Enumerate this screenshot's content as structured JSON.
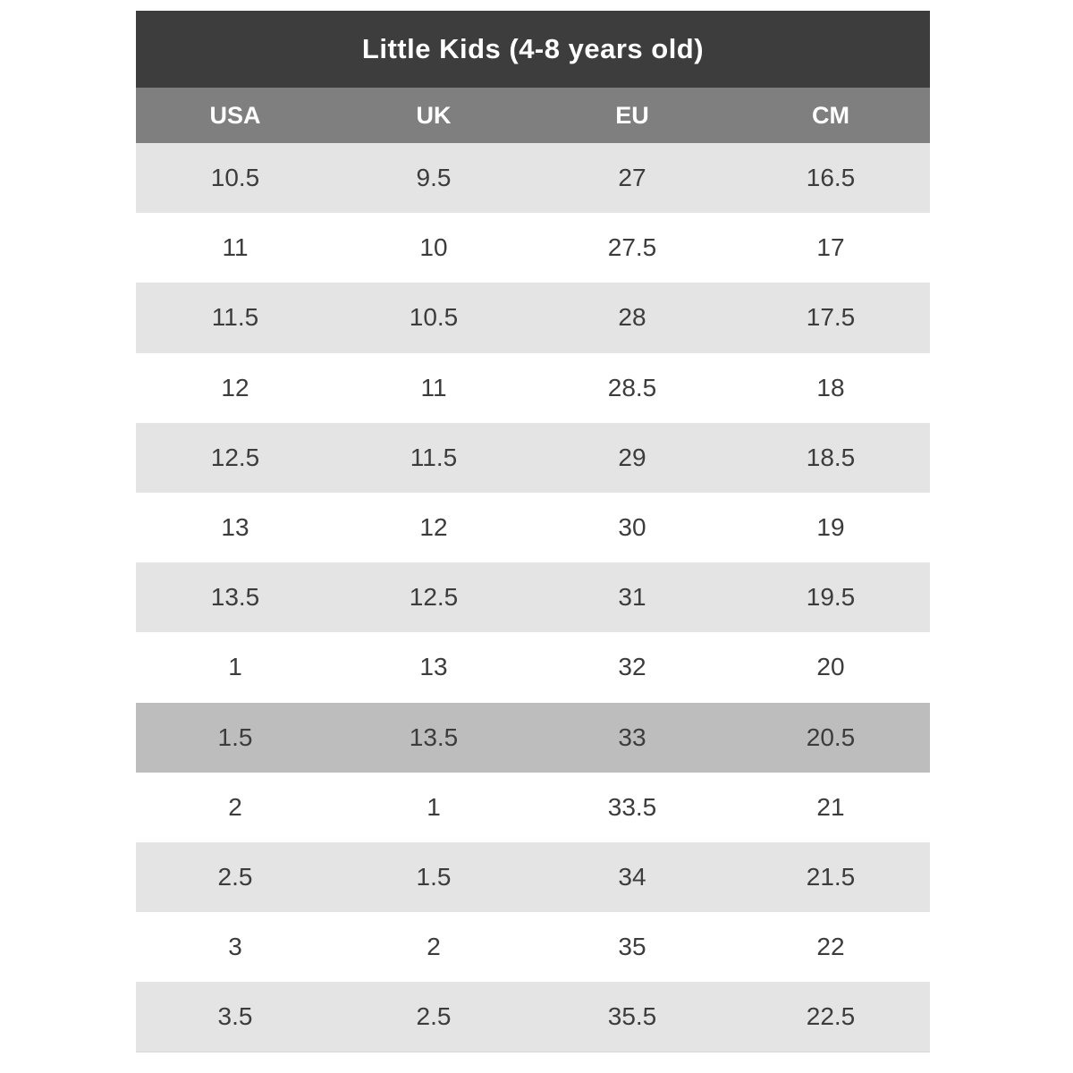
{
  "table": {
    "title": "Little Kids (4-8 years old)",
    "columns": [
      "USA",
      "UK",
      "EU",
      "CM"
    ],
    "rows": [
      [
        "10.5",
        "9.5",
        "27",
        "16.5"
      ],
      [
        "11",
        "10",
        "27.5",
        "17"
      ],
      [
        "11.5",
        "10.5",
        "28",
        "17.5"
      ],
      [
        "12",
        "11",
        "28.5",
        "18"
      ],
      [
        "12.5",
        "11.5",
        "29",
        "18.5"
      ],
      [
        "13",
        "12",
        "30",
        "19"
      ],
      [
        "13.5",
        "12.5",
        "31",
        "19.5"
      ],
      [
        "1",
        "13",
        "32",
        "20"
      ],
      [
        "1.5",
        "13.5",
        "33",
        "20.5"
      ],
      [
        "2",
        "1",
        "33.5",
        "21"
      ],
      [
        "2.5",
        "1.5",
        "34",
        "21.5"
      ],
      [
        "3",
        "2",
        "35",
        "22"
      ],
      [
        "3.5",
        "2.5",
        "35.5",
        "22.5"
      ]
    ],
    "highlighted_row_index": 8
  },
  "colors": {
    "page_bg": "#ffffff",
    "title_bar_bg": "#3d3d3d",
    "title_text": "#ffffff",
    "header_bg": "#7f7f7f",
    "header_text": "#ffffff",
    "row_white_bg": "#ffffff",
    "row_shade_bg": "#e4e4e4",
    "row_highlight_bg": "#bdbdbd",
    "cell_text": "#3c3c3c"
  }
}
